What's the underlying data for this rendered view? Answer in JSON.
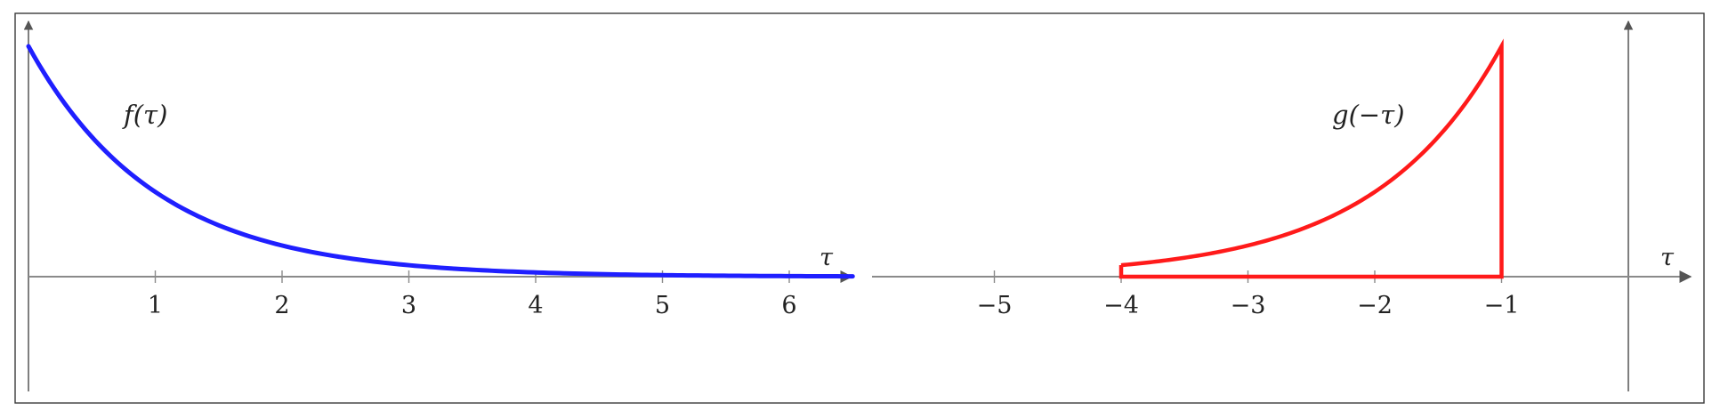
{
  "chart_data": [
    {
      "type": "line",
      "function_label": "f(τ)",
      "xlabel": "τ",
      "xlim": [
        0,
        6.5
      ],
      "ticks": [
        1,
        2,
        3,
        4,
        5,
        6
      ],
      "tick_labels": [
        "1",
        "2",
        "3",
        "4",
        "5",
        "6"
      ],
      "series": [
        {
          "color": "#1f1fff",
          "x": [
            0,
            0.25,
            0.5,
            0.75,
            1,
            1.25,
            1.5,
            1.75,
            2,
            2.5,
            3,
            3.5,
            4,
            4.5,
            5,
            5.5,
            6,
            6.5
          ],
          "y": [
            1,
            0.779,
            0.607,
            0.472,
            0.368,
            0.287,
            0.223,
            0.174,
            0.135,
            0.082,
            0.05,
            0.03,
            0.018,
            0.011,
            0.007,
            0.004,
            0.002,
            0.002
          ]
        }
      ]
    },
    {
      "type": "line",
      "function_label": "g(−τ)",
      "xlabel": "τ",
      "xlim": [
        -6,
        0.5
      ],
      "ticks": [
        -5,
        -4,
        -3,
        -2,
        -1
      ],
      "tick_labels": [
        "−5",
        "−4",
        "−3",
        "−2",
        "−1"
      ],
      "series": [
        {
          "color": "#ff1a1a",
          "x": [
            -4,
            -4,
            -3.5,
            -3,
            -2.5,
            -2,
            -1.5,
            -1,
            -1,
            -4
          ],
          "y": [
            0,
            0.05,
            0.082,
            0.135,
            0.223,
            0.368,
            0.607,
            1,
            0,
            0
          ]
        }
      ]
    }
  ]
}
